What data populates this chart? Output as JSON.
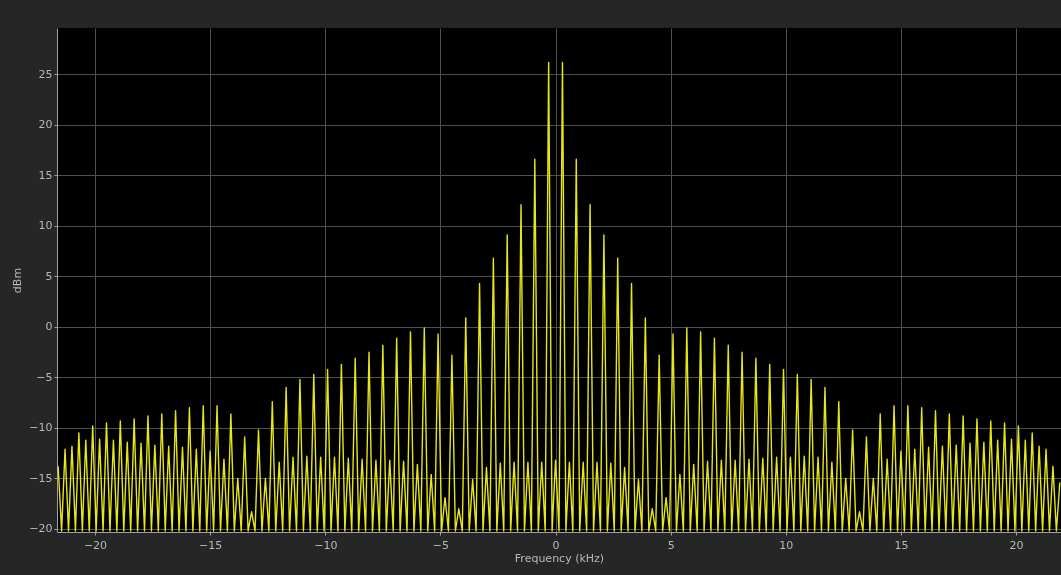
{
  "chart_data": {
    "type": "line",
    "xlabel": "Frequency (kHz)",
    "ylabel": "dBm",
    "x": [
      -21.6,
      -21.45,
      -21.3,
      -21.15,
      -21.0,
      -20.85,
      -20.7,
      -20.55,
      -20.4,
      -20.25,
      -20.1,
      -19.95,
      -19.8,
      -19.65,
      -19.5,
      -19.35,
      -19.2,
      -19.05,
      -18.9,
      -18.75,
      -18.6,
      -18.45,
      -18.3,
      -18.15,
      -18.0,
      -17.85,
      -17.7,
      -17.55,
      -17.4,
      -17.25,
      -17.1,
      -16.95,
      -16.8,
      -16.65,
      -16.5,
      -16.35,
      -16.2,
      -16.05,
      -15.9,
      -15.75,
      -15.6,
      -15.45,
      -15.3,
      -15.15,
      -15.0,
      -14.85,
      -14.7,
      -14.55,
      -14.4,
      -14.25,
      -14.1,
      -13.95,
      -13.8,
      -13.65,
      -13.5,
      -13.35,
      -13.2,
      -13.05,
      -12.9,
      -12.75,
      -12.6,
      -12.45,
      -12.3,
      -12.15,
      -12.0,
      -11.85,
      -11.7,
      -11.55,
      -11.4,
      -11.25,
      -11.1,
      -10.95,
      -10.8,
      -10.65,
      -10.5,
      -10.35,
      -10.2,
      -10.05,
      -9.9,
      -9.75,
      -9.6,
      -9.45,
      -9.3,
      -9.15,
      -9.0,
      -8.85,
      -8.7,
      -8.55,
      -8.4,
      -8.25,
      -8.1,
      -7.95,
      -7.8,
      -7.65,
      -7.5,
      -7.35,
      -7.2,
      -7.05,
      -6.9,
      -6.75,
      -6.6,
      -6.45,
      -6.3,
      -6.15,
      -6.0,
      -5.85,
      -5.7,
      -5.55,
      -5.4,
      -5.25,
      -5.1,
      -4.95,
      -4.8,
      -4.65,
      -4.5,
      -4.35,
      -4.2,
      -4.05,
      -3.9,
      -3.75,
      -3.6,
      -3.45,
      -3.3,
      -3.15,
      -3.0,
      -2.85,
      -2.7,
      -2.55,
      -2.4,
      -2.25,
      -2.1,
      -1.95,
      -1.8,
      -1.65,
      -1.5,
      -1.35,
      -1.2,
      -1.05,
      -0.9,
      -0.75,
      -0.6,
      -0.45,
      -0.3,
      -0.15,
      0,
      0.15,
      0.3,
      0.45,
      0.6,
      0.75,
      0.9,
      1.05,
      1.2,
      1.35,
      1.5,
      1.65,
      1.8,
      1.95,
      2.1,
      2.25,
      2.4,
      2.55,
      2.7,
      2.85,
      3.0,
      3.15,
      3.3,
      3.45,
      3.6,
      3.75,
      3.9,
      4.05,
      4.2,
      4.35,
      4.5,
      4.65,
      4.8,
      4.95,
      5.1,
      5.25,
      5.4,
      5.55,
      5.7,
      5.85,
      6.0,
      6.15,
      6.3,
      6.45,
      6.6,
      6.75,
      6.9,
      7.05,
      7.2,
      7.35,
      7.5,
      7.65,
      7.8,
      7.95,
      8.1,
      8.25,
      8.4,
      8.55,
      8.7,
      8.85,
      9.0,
      9.15,
      9.3,
      9.45,
      9.6,
      9.75,
      9.9,
      10.05,
      10.2,
      10.35,
      10.5,
      10.65,
      10.8,
      10.95,
      11.1,
      11.25,
      11.4,
      11.55,
      11.7,
      11.85,
      12.0,
      12.15,
      12.3,
      12.45,
      12.6,
      12.75,
      12.9,
      13.05,
      13.2,
      13.35,
      13.5,
      13.65,
      13.8,
      13.95,
      14.1,
      14.25,
      14.4,
      14.55,
      14.7,
      14.85,
      15.0,
      15.15,
      15.3,
      15.45,
      15.6,
      15.75,
      15.9,
      16.05,
      16.2,
      16.35,
      16.5,
      16.65,
      16.8,
      16.95,
      17.1,
      17.25,
      17.4,
      17.55,
      17.7,
      17.85,
      18.0,
      18.15,
      18.3,
      18.45,
      18.6,
      18.75,
      18.9,
      19.05,
      19.2,
      19.35,
      19.5,
      19.65,
      19.8,
      19.95,
      20.1,
      20.25,
      20.4,
      20.55,
      20.7,
      20.85,
      21.0,
      21.15,
      21.3,
      21.45,
      21.6,
      21.75,
      21.9
    ],
    "series": [
      {
        "color": "#e6e619",
        "values": [
          -13.8,
          -20.2,
          -12.1,
          -20.2,
          -11.8,
          -20.2,
          -10.5,
          -20.2,
          -11.2,
          -20.2,
          -9.8,
          -20.2,
          -11.1,
          -20.2,
          -9.5,
          -20.2,
          -11.2,
          -20.2,
          -9.3,
          -20.2,
          -11.4,
          -20.2,
          -9.1,
          -20.2,
          -11.5,
          -20.2,
          -8.8,
          -20.2,
          -11.7,
          -20.2,
          -8.6,
          -20.2,
          -11.8,
          -20.2,
          -8.3,
          -20.2,
          -11.9,
          -20.2,
          -8.0,
          -20.2,
          -12.1,
          -20.2,
          -7.8,
          -20.2,
          -12.3,
          -20.2,
          -7.8,
          -20.2,
          -13.1,
          -20.2,
          -8.6,
          -20.2,
          -15.0,
          -20.2,
          -10.9,
          -20.2,
          -18.3,
          -20.2,
          -10.2,
          -20.2,
          -15.0,
          -20.2,
          -7.4,
          -20.2,
          -13.4,
          -20.2,
          -6.0,
          -20.2,
          -12.9,
          -20.2,
          -5.2,
          -20.2,
          -12.8,
          -20.2,
          -4.7,
          -20.2,
          -12.9,
          -20.2,
          -4.2,
          -20.2,
          -12.9,
          -20.2,
          -3.7,
          -20.2,
          -13.0,
          -20.2,
          -3.1,
          -20.2,
          -13.1,
          -20.2,
          -2.5,
          -20.2,
          -13.2,
          -20.2,
          -1.8,
          -20.2,
          -13.2,
          -20.2,
          -1.1,
          -20.2,
          -13.3,
          -20.2,
          -0.5,
          -20.2,
          -13.6,
          -20.2,
          -0.1,
          -20.2,
          -14.6,
          -20.2,
          -0.7,
          -20.2,
          -16.9,
          -20.2,
          -2.8,
          -20.2,
          -18.0,
          -20.2,
          0.9,
          -20.2,
          -15.1,
          -20.2,
          4.3,
          -20.2,
          -13.9,
          -20.2,
          6.8,
          -20.2,
          -13.5,
          -20.2,
          9.1,
          -20.2,
          -13.4,
          -20.2,
          12.1,
          -20.2,
          -13.4,
          -20.2,
          16.6,
          -20.2,
          -13.4,
          -20.2,
          26.2,
          -20.2,
          -13.2,
          -20.2,
          26.2,
          -20.2,
          -13.4,
          -20.2,
          16.6,
          -20.2,
          -13.4,
          -20.2,
          12.1,
          -20.2,
          -13.4,
          -20.2,
          9.1,
          -20.2,
          -13.5,
          -20.2,
          6.8,
          -20.2,
          -13.9,
          -20.2,
          4.3,
          -20.2,
          -15.1,
          -20.2,
          0.9,
          -20.2,
          -18.0,
          -20.2,
          -2.8,
          -20.2,
          -16.9,
          -20.2,
          -0.7,
          -20.2,
          -14.6,
          -20.2,
          -0.1,
          -20.2,
          -13.6,
          -20.2,
          -0.5,
          -20.2,
          -13.3,
          -20.2,
          -1.1,
          -20.2,
          -13.2,
          -20.2,
          -1.8,
          -20.2,
          -13.2,
          -20.2,
          -2.5,
          -20.2,
          -13.1,
          -20.2,
          -3.1,
          -20.2,
          -13.0,
          -20.2,
          -3.7,
          -20.2,
          -12.9,
          -20.2,
          -4.2,
          -20.2,
          -12.9,
          -20.2,
          -4.7,
          -20.2,
          -12.8,
          -20.2,
          -5.2,
          -20.2,
          -12.9,
          -20.2,
          -6.0,
          -20.2,
          -13.4,
          -20.2,
          -7.4,
          -20.2,
          -15.0,
          -20.2,
          -10.2,
          -20.2,
          -18.3,
          -20.2,
          -10.9,
          -20.2,
          -15.0,
          -20.2,
          -8.6,
          -20.2,
          -13.1,
          -20.2,
          -7.8,
          -20.2,
          -12.3,
          -20.2,
          -7.8,
          -20.2,
          -12.1,
          -20.2,
          -8.0,
          -20.2,
          -11.9,
          -20.2,
          -8.3,
          -20.2,
          -11.8,
          -20.2,
          -8.6,
          -20.2,
          -11.7,
          -20.2,
          -8.8,
          -20.2,
          -11.5,
          -20.2,
          -9.1,
          -20.2,
          -11.4,
          -20.2,
          -9.3,
          -20.2,
          -11.2,
          -20.2,
          -9.5,
          -20.2,
          -11.1,
          -20.2,
          -9.8,
          -20.2,
          -11.2,
          -20.2,
          -10.5,
          -20.2,
          -11.8,
          -20.2,
          -12.1,
          -20.2,
          -13.8,
          -20.2,
          -15.4
        ]
      }
    ],
    "xlim": [
      -21.65,
      21.95
    ],
    "xticks": [
      -20,
      -15,
      -10,
      -5,
      0,
      5,
      10,
      15,
      20
    ],
    "ylim": [
      -20.3,
      29.6
    ],
    "yticks": [
      -20,
      -15,
      -10,
      -5,
      0,
      5,
      10,
      15,
      20,
      25
    ],
    "grid": true
  }
}
